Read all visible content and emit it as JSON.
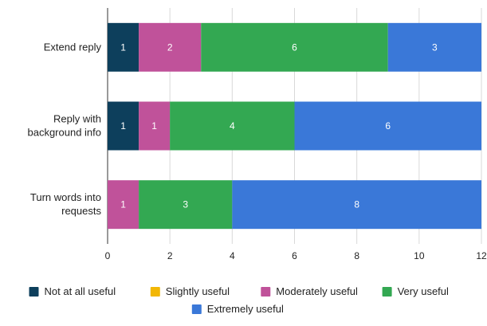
{
  "chart_data": {
    "type": "bar",
    "orientation": "horizontal",
    "stacked": true,
    "title": "",
    "xlabel": "",
    "ylabel": "",
    "categories": [
      "Extend reply",
      "Reply with background info",
      "Turn words into requests"
    ],
    "category_lines": [
      [
        "Extend reply"
      ],
      [
        "Reply with",
        "background info"
      ],
      [
        "Turn words into",
        "requests"
      ]
    ],
    "series": [
      {
        "name": "Not at all useful",
        "color": "#0d3f5c",
        "values": [
          1,
          1,
          0
        ]
      },
      {
        "name": "Slightly useful",
        "color": "#f2b705",
        "values": [
          0,
          0,
          0
        ]
      },
      {
        "name": "Moderately useful",
        "color": "#c0529a",
        "values": [
          2,
          1,
          1
        ]
      },
      {
        "name": "Very useful",
        "color": "#33a852",
        "values": [
          6,
          4,
          3
        ]
      },
      {
        "name": "Extremely useful",
        "color": "#3a78d8",
        "values": [
          3,
          6,
          8
        ]
      }
    ],
    "xlim": [
      0,
      12
    ],
    "xticks": [
      0,
      2,
      4,
      6,
      8,
      10,
      12
    ],
    "grid": true,
    "legend_position": "bottom"
  }
}
